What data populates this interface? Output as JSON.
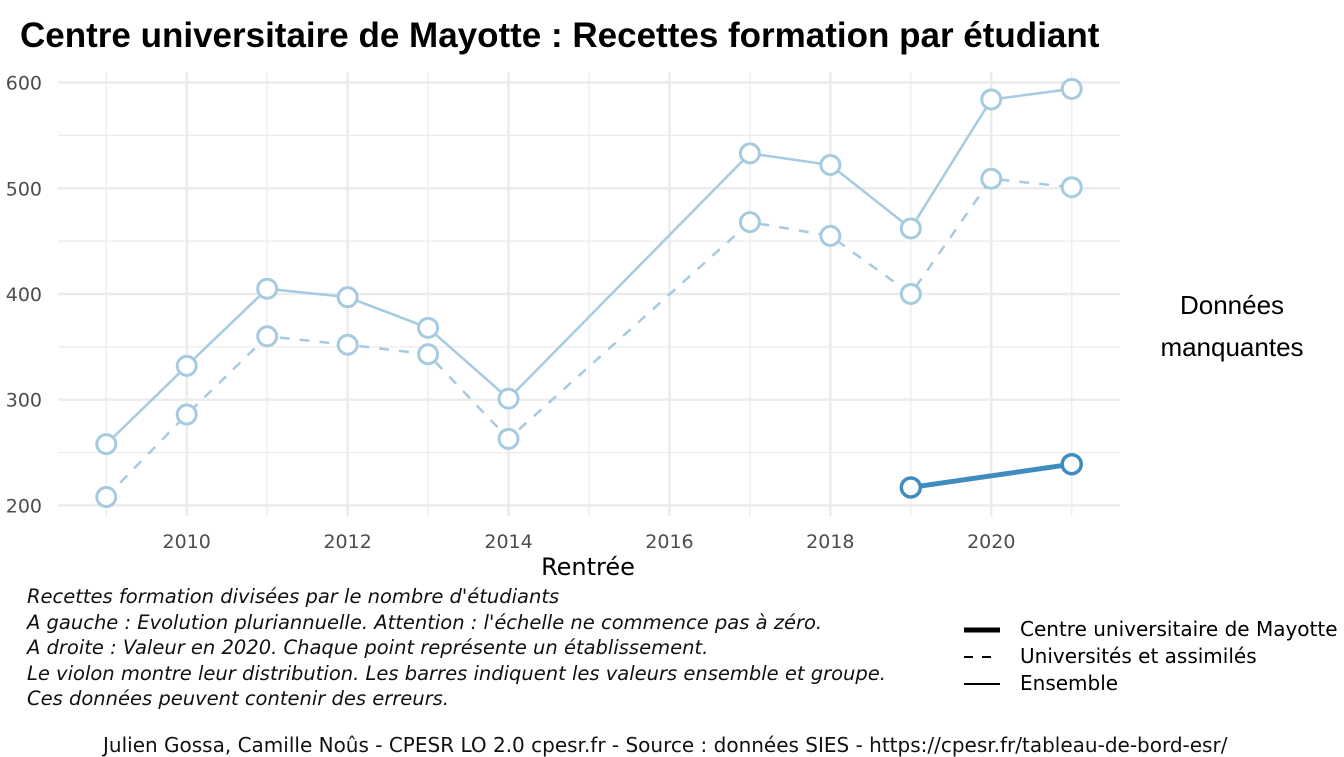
{
  "chart_data": {
    "type": "line",
    "title": "Centre universitaire de Mayotte  :  Recettes formation par étudiant",
    "xlabel": "Rentrée",
    "ylabel": "",
    "xlim": [
      2008.4,
      2021.6
    ],
    "ylim": [
      190,
      610
    ],
    "xticks": [
      2010,
      2012,
      2014,
      2016,
      2018,
      2020
    ],
    "yticks": [
      200,
      300,
      400,
      500,
      600
    ],
    "grid": true,
    "legend_position": "bottom-right",
    "series": [
      {
        "name": "Ensemble",
        "style": "solid",
        "color": "#a6cbe1",
        "width": 2.5,
        "x": [
          2009,
          2010,
          2011,
          2012,
          2013,
          2014,
          2017,
          2018,
          2019,
          2020,
          2021
        ],
        "values": [
          258,
          332,
          405,
          397,
          368,
          301,
          533,
          522,
          462,
          584,
          594
        ]
      },
      {
        "name": "Universités et assimilés",
        "style": "dashed",
        "color": "#a6cbe1",
        "width": 2.5,
        "x": [
          2009,
          2010,
          2011,
          2012,
          2013,
          2014,
          2017,
          2018,
          2019,
          2020,
          2021
        ],
        "values": [
          208,
          286,
          360,
          352,
          343,
          263,
          468,
          455,
          400,
          509,
          501
        ]
      },
      {
        "name": "Centre universitaire de Mayotte",
        "style": "solid",
        "color": "#3f8dc0",
        "width": 5,
        "x": [
          2019,
          2021
        ],
        "values": [
          217,
          239
        ]
      }
    ]
  },
  "side_panel": {
    "text_line1": "Données",
    "text_line2": "manquantes"
  },
  "notes": [
    "Recettes formation divisées par le nombre d'étudiants",
    "A gauche : Evolution pluriannuelle. Attention : l'échelle ne commence pas à zéro.",
    "A droite : Valeur en 2020. Chaque point représente un établissement.",
    "Le violon montre leur distribution. Les barres indiquent les valeurs ensemble et groupe.",
    "Ces données peuvent contenir des erreurs."
  ],
  "legend": [
    {
      "label": "Centre universitaire de Mayotte",
      "style": "thick"
    },
    {
      "label": "Universités et assimilés",
      "style": "dashed"
    },
    {
      "label": "Ensemble",
      "style": "solid"
    }
  ],
  "caption": "Julien Gossa, Camille Noûs - CPESR LO 2.0 cpesr.fr - Source : données SIES - https://cpesr.fr/tableau-de-bord-esr/",
  "colors": {
    "grid": "#ebebeb",
    "axis_text": "#4d4d4d"
  }
}
